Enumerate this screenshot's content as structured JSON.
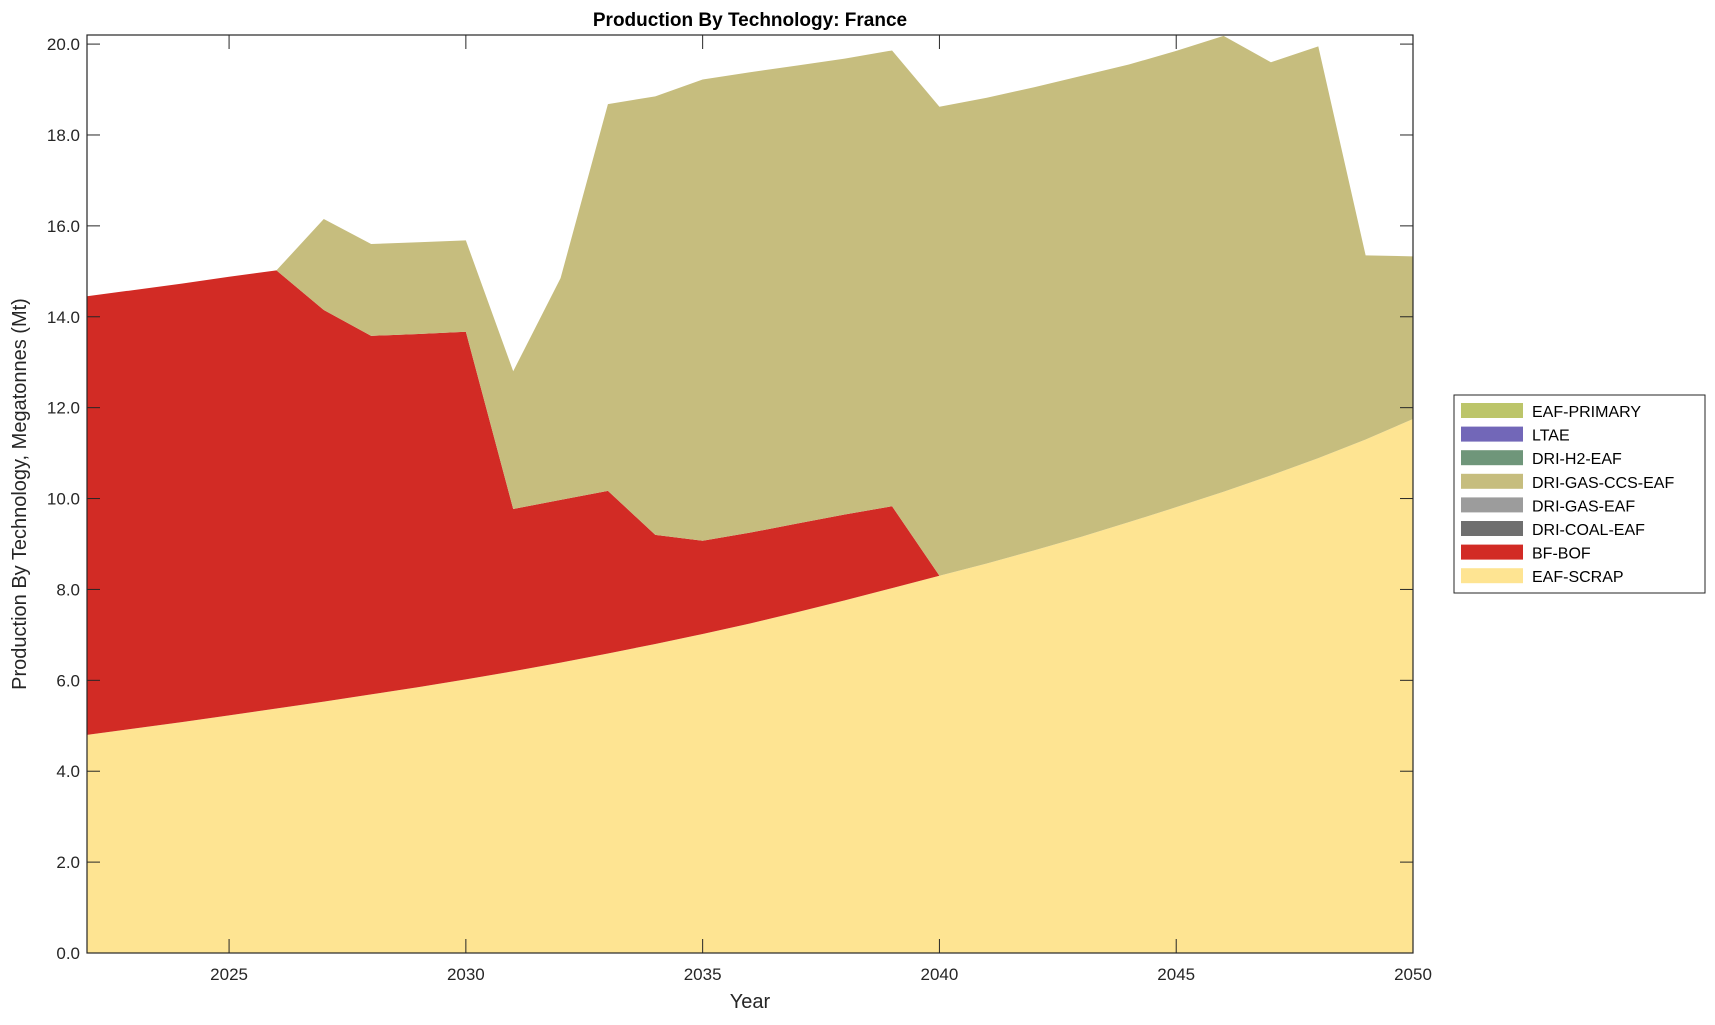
{
  "chart_data": {
    "type": "area",
    "stacked": true,
    "title": "Production By Technology: France",
    "xlabel": "Year",
    "ylabel": "Production By Technology, Megatonnes (Mt)",
    "xlim": [
      2022,
      2050
    ],
    "ylim": [
      0,
      20.2
    ],
    "xticks": [
      2025,
      2030,
      2035,
      2040,
      2045,
      2050
    ],
    "yticks": [
      "0.0",
      "2.0",
      "4.0",
      "6.0",
      "8.0",
      "10.0",
      "12.0",
      "14.0",
      "16.0",
      "18.0",
      "20.0"
    ],
    "grid": false,
    "legend_position": "right",
    "x": [
      2022,
      2023,
      2024,
      2025,
      2026,
      2027,
      2028,
      2029,
      2030,
      2031,
      2032,
      2033,
      2034,
      2035,
      2036,
      2037,
      2038,
      2039,
      2040,
      2041,
      2042,
      2043,
      2044,
      2045,
      2046,
      2047,
      2048,
      2049,
      2050
    ],
    "series": [
      {
        "name": "EAF-SCRAP",
        "color": "#fee492",
        "values": [
          4.8,
          4.94,
          5.08,
          5.23,
          5.38,
          5.53,
          5.69,
          5.85,
          6.02,
          6.2,
          6.39,
          6.59,
          6.8,
          7.02,
          7.25,
          7.5,
          7.76,
          8.03,
          8.3,
          8.57,
          8.86,
          9.16,
          9.48,
          9.81,
          10.15,
          10.51,
          10.89,
          11.3,
          11.75
        ]
      },
      {
        "name": "BF-BOF",
        "color": "#d22b25",
        "values": [
          9.65,
          9.65,
          9.65,
          9.65,
          9.64,
          8.62,
          7.89,
          7.77,
          7.65,
          3.57,
          3.58,
          3.58,
          2.4,
          2.05,
          2.0,
          1.95,
          1.89,
          1.8,
          0,
          0,
          0,
          0,
          0,
          0,
          0,
          0,
          0,
          0,
          0
        ]
      },
      {
        "name": "DRI-COAL-EAF",
        "color": "#6f6f6f",
        "values": [
          0,
          0,
          0,
          0,
          0,
          0,
          0,
          0,
          0,
          0,
          0,
          0,
          0,
          0,
          0,
          0,
          0,
          0,
          0,
          0,
          0,
          0,
          0,
          0,
          0,
          0,
          0,
          0,
          0
        ]
      },
      {
        "name": "DRI-GAS-EAF",
        "color": "#9c9c9c",
        "values": [
          0,
          0,
          0,
          0,
          0,
          0,
          0,
          0,
          0,
          0,
          0,
          0,
          0,
          0,
          0,
          0,
          0,
          0,
          0,
          0,
          0,
          0,
          0,
          0,
          0,
          0,
          0,
          0,
          0
        ]
      },
      {
        "name": "DRI-GAS-CCS-EAF",
        "color": "#c6bd7e",
        "values": [
          0,
          0,
          0,
          0,
          0,
          2.0,
          2.02,
          2.02,
          2.01,
          3.03,
          4.88,
          8.51,
          9.65,
          10.15,
          10.13,
          10.08,
          10.03,
          10.03,
          10.32,
          10.25,
          10.19,
          10.14,
          10.07,
          10.04,
          10.03,
          9.09,
          9.06,
          4.05,
          3.58
        ]
      },
      {
        "name": "DRI-H2-EAF",
        "color": "#6f967a",
        "values": [
          0,
          0,
          0,
          0,
          0,
          0,
          0,
          0,
          0,
          0,
          0,
          0,
          0,
          0,
          0,
          0,
          0,
          0,
          0,
          0,
          0,
          0,
          0,
          0,
          0,
          0,
          0,
          0,
          0
        ]
      },
      {
        "name": "LTAE",
        "color": "#7267b8",
        "values": [
          0,
          0,
          0,
          0,
          0,
          0,
          0,
          0,
          0,
          0,
          0,
          0,
          0,
          0,
          0,
          0,
          0,
          0,
          0,
          0,
          0,
          0,
          0,
          0,
          0,
          0,
          0,
          0,
          0
        ]
      },
      {
        "name": "EAF-PRIMARY",
        "color": "#bcc56a",
        "values": [
          0,
          0,
          0,
          0,
          0,
          0,
          0,
          0,
          0,
          0,
          0,
          0,
          0,
          0,
          0,
          0,
          0,
          0,
          0,
          0,
          0,
          0,
          0,
          0,
          0,
          0,
          0,
          0,
          0
        ]
      }
    ],
    "legend_order": [
      "EAF-PRIMARY",
      "LTAE",
      "DRI-H2-EAF",
      "DRI-GAS-CCS-EAF",
      "DRI-GAS-EAF",
      "DRI-COAL-EAF",
      "BF-BOF",
      "EAF-SCRAP"
    ]
  }
}
